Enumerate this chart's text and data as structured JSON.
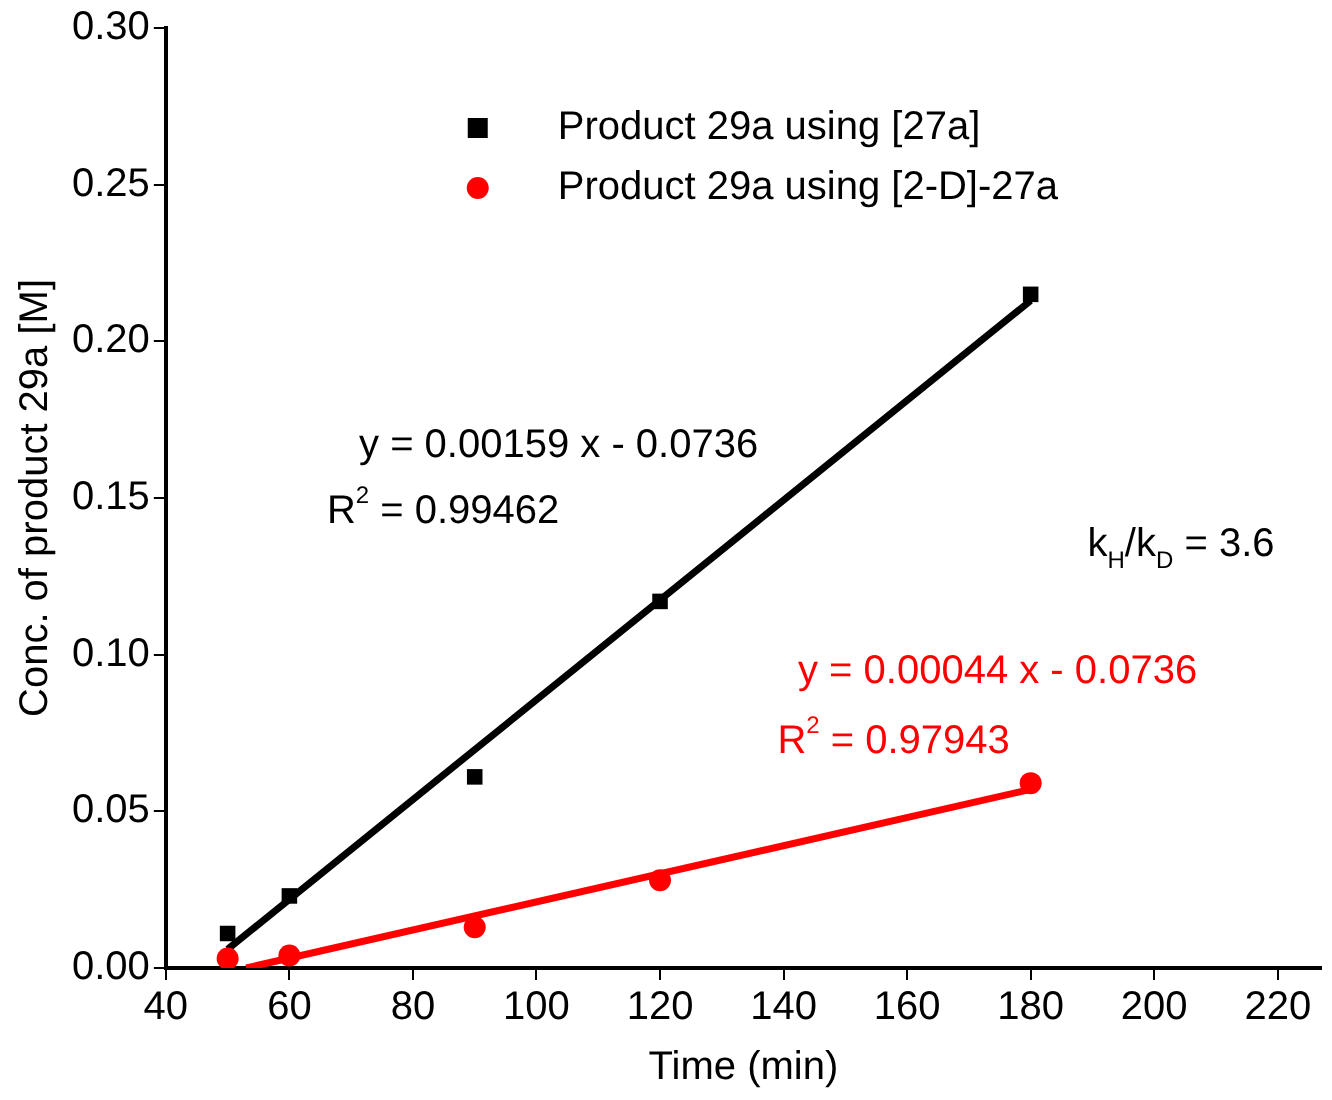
{
  "chart_data": {
    "type": "scatter",
    "xlabel": "Time (min)",
    "ylabel": "Conc. of product 29a [M]",
    "xlim": [
      40,
      227
    ],
    "xticks": [
      40,
      60,
      80,
      100,
      120,
      140,
      160,
      180,
      200,
      220
    ],
    "ylim": [
      0,
      0.3
    ],
    "yticks": [
      {
        "value": 0,
        "label": "0.00"
      },
      {
        "value": 0.05,
        "label": "0.05"
      },
      {
        "value": 0.1,
        "label": "0.10"
      },
      {
        "value": 0.15,
        "label": "0.15"
      },
      {
        "value": 0.2,
        "label": "0.20"
      },
      {
        "value": 0.25,
        "label": "0.25"
      },
      {
        "value": 0.3,
        "label": "0.30"
      }
    ],
    "grid": false,
    "legend": "top",
    "series": [
      {
        "name": "Product 29a using [27a]",
        "color": "#000000",
        "marker": "square",
        "x": [
          50,
          60,
          90,
          120,
          180
        ],
        "values": [
          0.011,
          0.023,
          0.061,
          0.117,
          0.215
        ]
      },
      {
        "name": "Product 29a using [2-D]-27a",
        "color": "#ff0000",
        "marker": "circle",
        "x": [
          50,
          60,
          90,
          120,
          180
        ],
        "values": [
          0.003,
          0.004,
          0.013,
          0.028,
          0.059
        ]
      },
      {
        "type": "line",
        "color": "#000000",
        "marker": "none",
        "x": [
          50,
          180
        ],
        "values": [
          0.006,
          0.213
        ]
      },
      {
        "type": "line",
        "color": "#ff0000",
        "marker": "none",
        "x": [
          53,
          180
        ],
        "values": [
          0,
          0.057
        ]
      }
    ],
    "annotations": [
      "y = 0.00159 x - 0.0736",
      "R$^{2}$ = 0.99462",
      "y = 0.00044 x - 0.0736",
      "R$^{2}$ = 0.97943",
      "k$_{H}$/k$_{D}$ = 3.6"
    ]
  }
}
